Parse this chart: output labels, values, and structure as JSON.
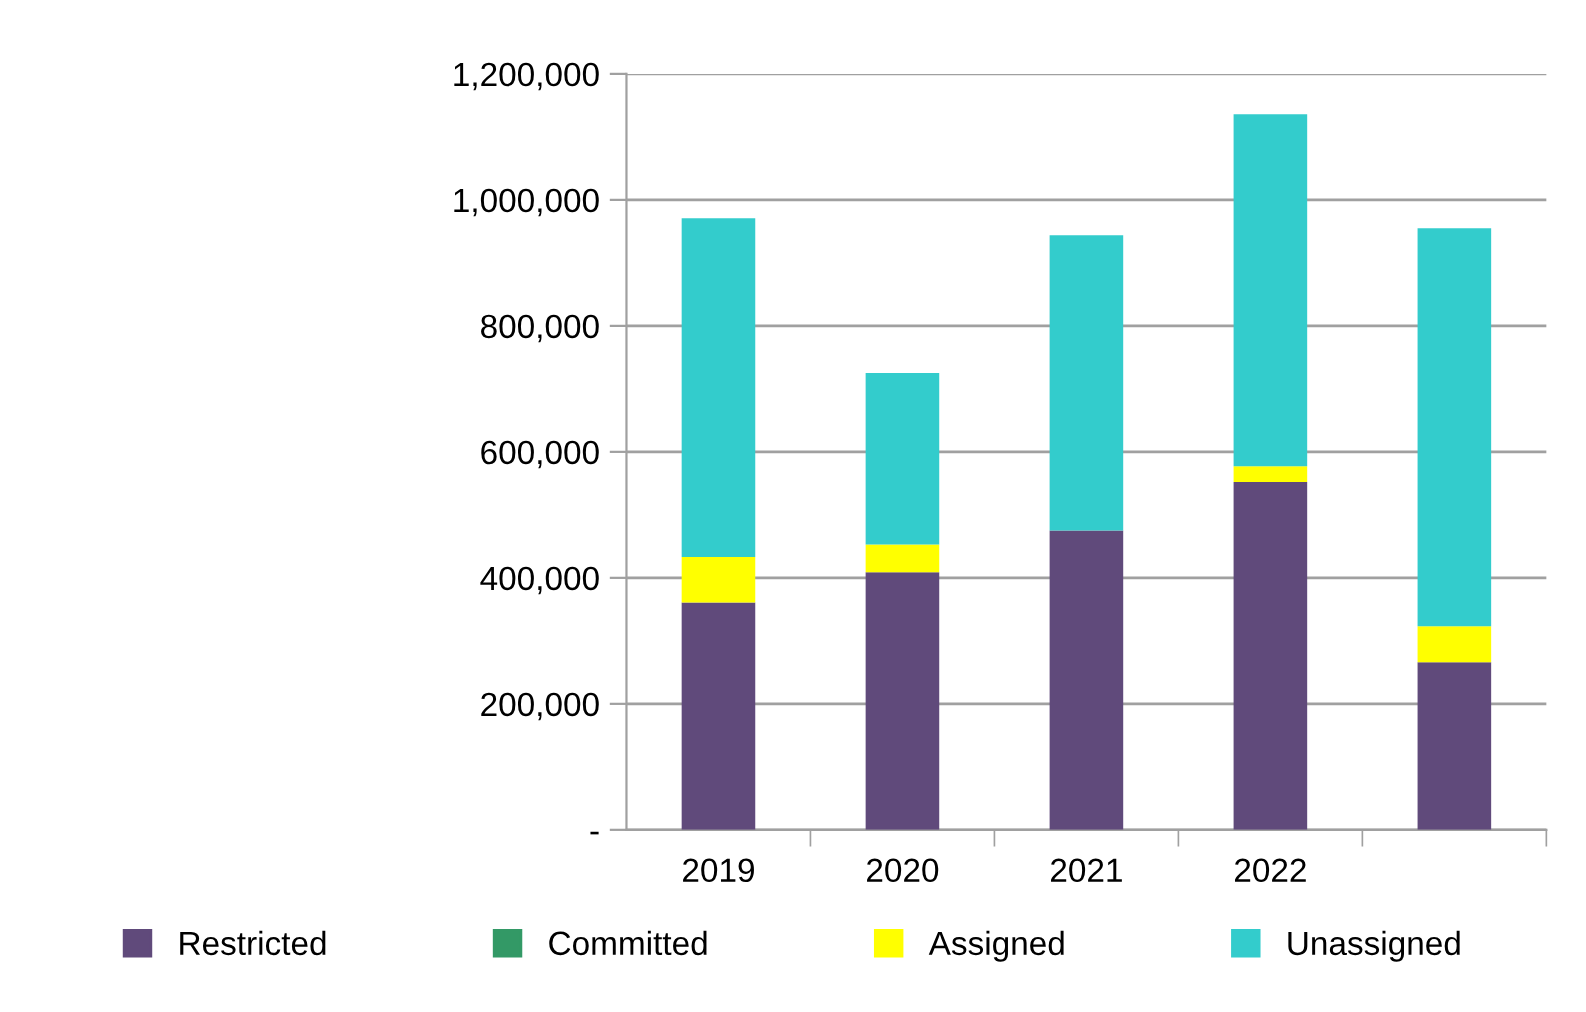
{
  "chart_data": {
    "type": "bar",
    "stacked": true,
    "categories": [
      "2019",
      "2020",
      "2021",
      "2022",
      null
    ],
    "series": [
      {
        "name": "Restricted",
        "color": "#604a7b",
        "values": [
          361000,
          409000,
          475000,
          552000,
          266000
        ]
      },
      {
        "name": "Committed",
        "color": "#339966",
        "values": [
          0,
          0,
          0,
          0,
          0
        ]
      },
      {
        "name": "Assigned",
        "color": "#ffff00",
        "values": [
          72000,
          44000,
          0,
          25000,
          57000
        ]
      },
      {
        "name": "Unassigned",
        "color": "#33cccc",
        "values": [
          538000,
          272000,
          469000,
          559000,
          632000
        ]
      }
    ],
    "ylim": [
      0,
      1200000
    ],
    "yticks": [
      {
        "value": 0,
        "label": "-"
      },
      {
        "value": 200000,
        "label": "200,000"
      },
      {
        "value": 400000,
        "label": "400,000"
      },
      {
        "value": 600000,
        "label": "600,000"
      },
      {
        "value": 800000,
        "label": "800,000"
      },
      {
        "value": 1000000,
        "label": "1,000,000"
      },
      {
        "value": 1200000,
        "label": "1,200,000"
      }
    ],
    "grid": "y",
    "legend": "bottom"
  }
}
